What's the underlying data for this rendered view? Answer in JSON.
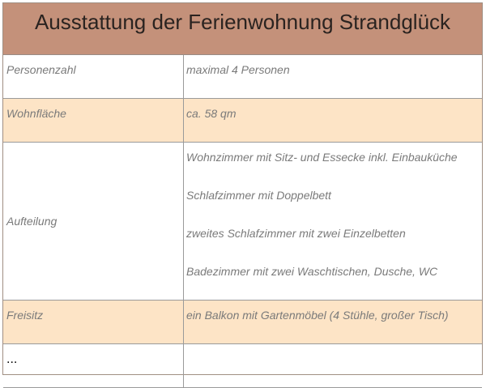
{
  "title": "Ausstattung der Ferienwohnung Strandglück",
  "rows": [
    {
      "label": "Personenzahl",
      "values": [
        "maximal 4 Personen"
      ]
    },
    {
      "label": "Wohnfläche",
      "values": [
        "ca. 58 qm"
      ]
    },
    {
      "label": "Aufteilung",
      "values": [
        "Wohnzimmer mit Sitz- und Essecke inkl. Einbauküche",
        "Schlafzimmer mit Doppelbett",
        "zweites Schlafzimmer mit zwei Einzelbetten",
        "Badezimmer mit zwei Waschtischen, Dusche, WC"
      ]
    },
    {
      "label": "Freisitz",
      "values": [
        "ein Balkon mit Gartenmöbel (4 Stühle, großer Tisch)"
      ]
    },
    {
      "label": "...",
      "values": []
    }
  ],
  "colors": {
    "header": "#c4917a",
    "alt_row": "#fde4c6"
  }
}
